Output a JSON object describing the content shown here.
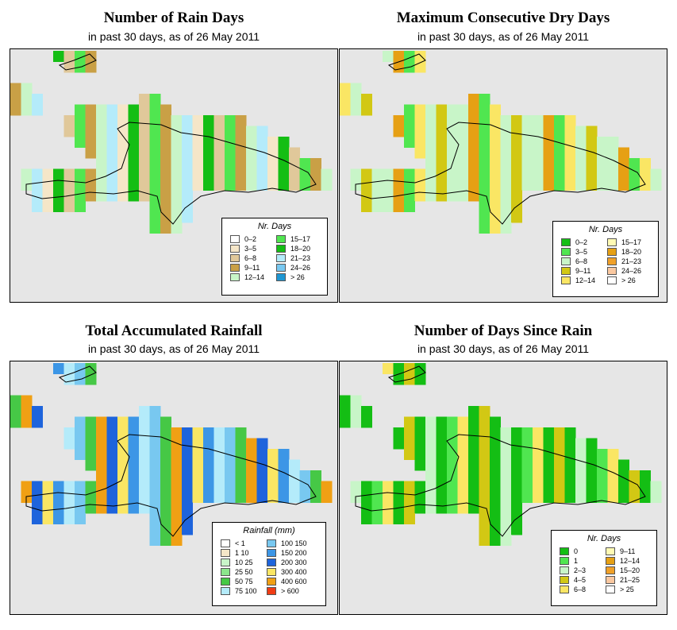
{
  "panels": [
    {
      "id": "rain-days",
      "title": "Number of Rain Days",
      "subtitle": "in past 30 days, as of  26 May 2011",
      "legend": {
        "title": "Nr. Days",
        "items": [
          {
            "label": "0–2",
            "color": "#ffffff"
          },
          {
            "label": "3–5",
            "color": "#f5e6c8"
          },
          {
            "label": "6–8",
            "color": "#e0c89a"
          },
          {
            "label": "9–11",
            "color": "#c9a046"
          },
          {
            "label": "12–14",
            "color": "#c8f5c8"
          },
          {
            "label": "15–17",
            "color": "#50e650"
          },
          {
            "label": "18–20",
            "color": "#14be14"
          },
          {
            "label": "21–23",
            "color": "#b4ebfa"
          },
          {
            "label": "24–26",
            "color": "#78c8f0"
          },
          {
            "label": "> 26",
            "color": "#1e96d2"
          }
        ]
      }
    },
    {
      "id": "dry-days",
      "title": "Maximum Consecutive Dry Days",
      "subtitle": "in past 30 days, as of  26 May 2011",
      "legend": {
        "title": "Nr. Days",
        "items": [
          {
            "label": "0–2",
            "color": "#14be14"
          },
          {
            "label": "3–5",
            "color": "#50e650"
          },
          {
            "label": "6–8",
            "color": "#c8f5c8"
          },
          {
            "label": "9–11",
            "color": "#d2c814"
          },
          {
            "label": "12–14",
            "color": "#fae664"
          },
          {
            "label": "15–17",
            "color": "#fffab4"
          },
          {
            "label": "18–20",
            "color": "#e6a014"
          },
          {
            "label": "21–23",
            "color": "#f0a028"
          },
          {
            "label": "24–26",
            "color": "#fac8a0"
          },
          {
            "label": "> 26",
            "color": "#ffffff"
          }
        ]
      }
    },
    {
      "id": "rainfall",
      "title": "Total Accumulated Rainfall",
      "subtitle": "in past 30 days, as of  26 May 2011",
      "legend": {
        "title": "Rainfall (mm)",
        "items": [
          {
            "label": "< 1",
            "color": "#ffffff"
          },
          {
            "label": "1    10",
            "color": "#f5e6c8"
          },
          {
            "label": "10    25",
            "color": "#c8f5c8"
          },
          {
            "label": "25    50",
            "color": "#8ce68c"
          },
          {
            "label": "50    75",
            "color": "#46c846"
          },
          {
            "label": "75   100",
            "color": "#b4ebfa"
          },
          {
            "label": "100   150",
            "color": "#78c8f0"
          },
          {
            "label": "150   200",
            "color": "#3c96e6"
          },
          {
            "label": "200   300",
            "color": "#1e64dc"
          },
          {
            "label": "300   400",
            "color": "#fae664"
          },
          {
            "label": "400   600",
            "color": "#f0a014"
          },
          {
            "label": "> 600",
            "color": "#f03c14"
          }
        ]
      }
    },
    {
      "id": "since-rain",
      "title": "Number of Days Since Rain",
      "subtitle": "in past 30 days, as of  26 May 2011",
      "legend": {
        "title": "Nr. Days",
        "items": [
          {
            "label": "0",
            "color": "#14be14"
          },
          {
            "label": "1",
            "color": "#50e650"
          },
          {
            "label": "2–3",
            "color": "#c8f5c8"
          },
          {
            "label": "4–5",
            "color": "#d2c814"
          },
          {
            "label": "6–8",
            "color": "#fae664"
          },
          {
            "label": "9–11",
            "color": "#fffab4"
          },
          {
            "label": "12–14",
            "color": "#e6a014"
          },
          {
            "label": "15–20",
            "color": "#f0a028"
          },
          {
            "label": "21–25",
            "color": "#fac8a0"
          },
          {
            "label": "> 25",
            "color": "#ffffff"
          }
        ]
      }
    }
  ]
}
